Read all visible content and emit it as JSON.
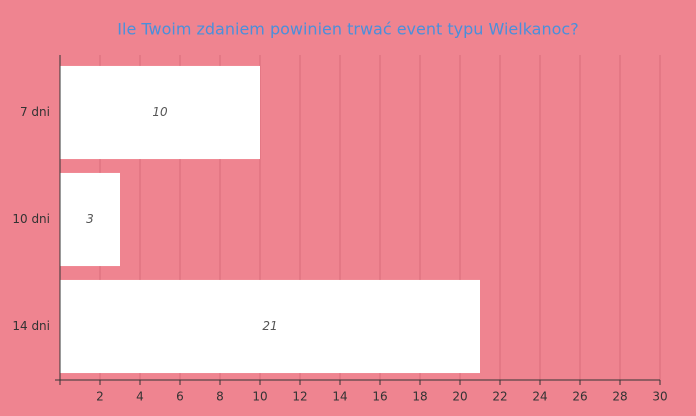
{
  "chart_data": {
    "type": "bar",
    "orientation": "horizontal",
    "title": "Ile Twoim zdaniem powinien trwać event typu Wielkanoc?",
    "categories": [
      "7 dni",
      "10 dni",
      "14 dni"
    ],
    "values": [
      10,
      3,
      21
    ],
    "color": "#ffffff",
    "background": "#ef8490",
    "xlim": [
      0,
      30
    ],
    "xticks": [
      2,
      4,
      6,
      8,
      10,
      12,
      14,
      16,
      18,
      20,
      22,
      24,
      26,
      28,
      30
    ],
    "grid": true
  }
}
